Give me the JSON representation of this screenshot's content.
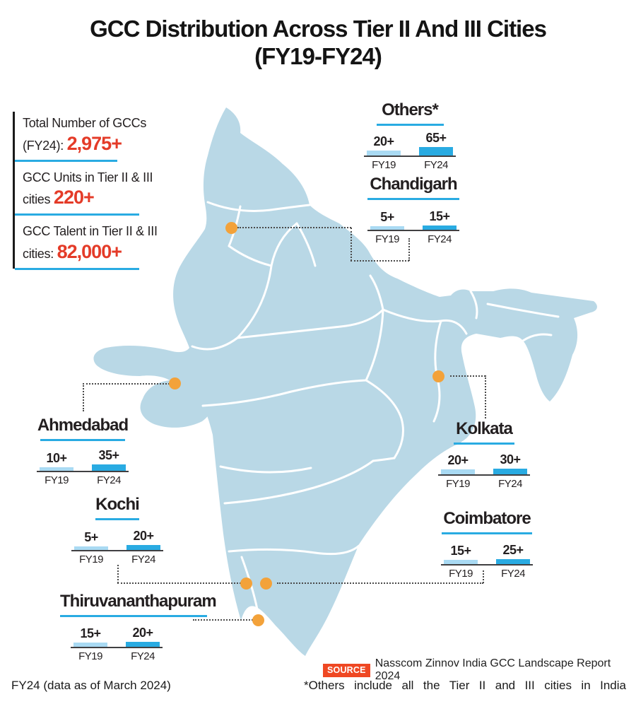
{
  "title": {
    "line1": "GCC Distribution Across Tier II And III Cities",
    "line2": "(FY19-FY24)"
  },
  "stats": [
    {
      "line1": "Total Number of GCCs",
      "prefix": "(FY24): ",
      "value": "2,975+"
    },
    {
      "line1": "GCC Units in Tier II & III",
      "prefix": "cities ",
      "value": "220+"
    },
    {
      "line1": "GCC Talent in Tier II & III",
      "prefix": "cities: ",
      "value": "82,000+"
    }
  ],
  "years": [
    "FY19",
    "FY24"
  ],
  "cities": [
    {
      "name": "Others*",
      "values": [
        20,
        65
      ],
      "labels": [
        "20+",
        "65+"
      ]
    },
    {
      "name": "Chandigarh",
      "values": [
        5,
        15
      ],
      "labels": [
        "5+",
        "15+"
      ]
    },
    {
      "name": "Ahmedabad",
      "values": [
        10,
        35
      ],
      "labels": [
        "10+",
        "35+"
      ]
    },
    {
      "name": "Kolkata",
      "values": [
        20,
        30
      ],
      "labels": [
        "20+",
        "30+"
      ]
    },
    {
      "name": "Kochi",
      "values": [
        5,
        20
      ],
      "labels": [
        "5+",
        "20+"
      ]
    },
    {
      "name": "Coimbatore",
      "values": [
        15,
        25
      ],
      "labels": [
        "15+",
        "25+"
      ]
    },
    {
      "name": "Thiruvananthapuram",
      "values": [
        15,
        20
      ],
      "labels": [
        "15+",
        "20+"
      ]
    }
  ],
  "source": {
    "badge": "SOURCE",
    "text": "Nasscom Zinnov India GCC Landscape Report 2024"
  },
  "footnotes": {
    "left": "FY24 (data as of March 2024)",
    "right": "*Others include all the Tier II and III cities in India"
  },
  "colors": {
    "map_fill": "#b9d8e6",
    "state_border": "#ffffff",
    "bar_fy19": "#a9daf3",
    "bar_fy24": "#29abe2",
    "accent_blue": "#29abe2",
    "accent_red": "#e43b28",
    "marker_orange": "#f3a23a",
    "source_badge": "#ef4823"
  },
  "chart_data": {
    "type": "bar",
    "title": "GCC Distribution Across Tier II And III Cities (FY19-FY24)",
    "categories": [
      "Others*",
      "Chandigarh",
      "Ahmedabad",
      "Kolkata",
      "Kochi",
      "Coimbatore",
      "Thiruvananthapuram"
    ],
    "series": [
      {
        "name": "FY19",
        "values": [
          20,
          5,
          10,
          20,
          5,
          15,
          15
        ]
      },
      {
        "name": "FY24",
        "values": [
          65,
          15,
          35,
          30,
          20,
          25,
          20
        ]
      }
    ],
    "value_suffix": "+",
    "totals": {
      "total_gccs_fy24": "2,975+",
      "gcc_units_tier2_3": "220+",
      "gcc_talent_tier2_3": "82,000+"
    },
    "legend_position": "per-bar labels",
    "grid": false
  }
}
